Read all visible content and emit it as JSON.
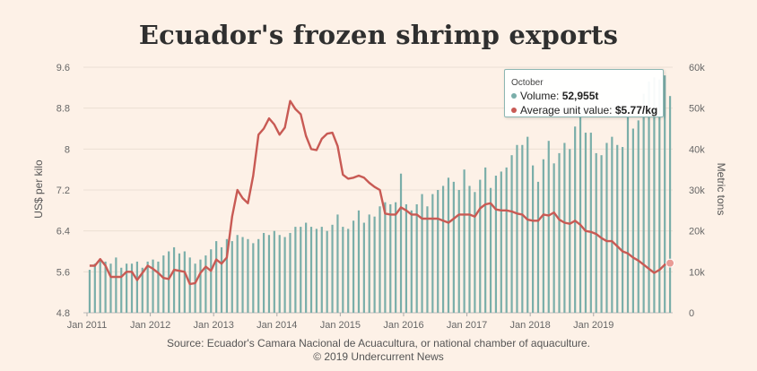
{
  "chart_data": {
    "type": "bar",
    "title": "Ecuador's frozen shrimp exports",
    "ylabel_left": "US$ per kilo",
    "ylabel_right": "Metric tons",
    "left_axis": {
      "ylim": [
        4.8,
        9.6
      ],
      "ticks": [
        "9.6",
        "8.8",
        "8",
        "7.2",
        "6.4",
        "5.6",
        "4.8"
      ]
    },
    "right_axis": {
      "ylim": [
        0,
        60000
      ],
      "ticks": [
        "60k",
        "50k",
        "40k",
        "30k",
        "20k",
        "10k",
        "0"
      ]
    },
    "x_ticks": [
      "Jan 2011",
      "Jan 2012",
      "Jan 2013",
      "Jan 2014",
      "Jan 2015",
      "Jan 2016",
      "Jan 2017",
      "Jan 2018",
      "Jan 2019"
    ],
    "start_month": "Jan 2011",
    "grid": true,
    "colors": {
      "volume": "#7aaea9",
      "unit_value": "#c85a54",
      "background": "#fdf1e7"
    },
    "series": [
      {
        "name": "Volume",
        "kind": "bar",
        "axis": "right",
        "values": [
          10500,
          12000,
          13000,
          12500,
          12000,
          13500,
          11000,
          12000,
          12000,
          12500,
          11000,
          12500,
          13000,
          12500,
          14000,
          15000,
          16000,
          14500,
          15000,
          13500,
          12000,
          13000,
          14000,
          15500,
          17500,
          16000,
          18000,
          17500,
          19000,
          18500,
          18000,
          17000,
          18000,
          19500,
          19000,
          20000,
          19000,
          18500,
          19500,
          21000,
          21000,
          22000,
          21000,
          20500,
          21000,
          20000,
          21500,
          24000,
          21000,
          20500,
          22500,
          25000,
          22000,
          24000,
          23500,
          26000,
          27000,
          26500,
          27000,
          34000,
          26500,
          25000,
          26500,
          29000,
          26000,
          29000,
          30000,
          31000,
          33000,
          32000,
          30000,
          35000,
          31000,
          29500,
          32500,
          35500,
          30500,
          33500,
          34500,
          35500,
          38500,
          41000,
          41000,
          43000,
          36000,
          32000,
          37500,
          42000,
          36500,
          39000,
          41500,
          40000,
          45500,
          50000,
          44000,
          44000,
          39000,
          38500,
          41500,
          43000,
          41000,
          40500,
          48000,
          45000,
          47000,
          53500,
          56500,
          57500,
          57000,
          58000,
          52955
        ]
      },
      {
        "name": "Average unit value",
        "kind": "line",
        "axis": "left",
        "values": [
          5.72,
          5.72,
          5.85,
          5.72,
          5.5,
          5.5,
          5.5,
          5.6,
          5.6,
          5.44,
          5.58,
          5.72,
          5.66,
          5.58,
          5.48,
          5.46,
          5.64,
          5.62,
          5.6,
          5.36,
          5.38,
          5.58,
          5.7,
          5.62,
          5.84,
          5.76,
          5.88,
          6.68,
          7.2,
          7.04,
          6.94,
          7.48,
          8.28,
          8.4,
          8.6,
          8.48,
          8.28,
          8.42,
          8.94,
          8.78,
          8.68,
          8.26,
          8.0,
          7.98,
          8.2,
          8.3,
          8.32,
          8.06,
          7.5,
          7.42,
          7.44,
          7.48,
          7.44,
          7.34,
          7.26,
          7.2,
          6.74,
          6.72,
          6.72,
          6.86,
          6.8,
          6.72,
          6.72,
          6.64,
          6.64,
          6.64,
          6.64,
          6.6,
          6.56,
          6.64,
          6.72,
          6.72,
          6.72,
          6.68,
          6.84,
          6.92,
          6.94,
          6.82,
          6.8,
          6.8,
          6.78,
          6.74,
          6.72,
          6.62,
          6.6,
          6.6,
          6.72,
          6.7,
          6.76,
          6.62,
          6.56,
          6.54,
          6.6,
          6.52,
          6.4,
          6.38,
          6.34,
          6.26,
          6.2,
          6.2,
          6.1,
          6.0,
          5.96,
          5.88,
          5.82,
          5.74,
          5.66,
          5.58,
          5.64,
          5.74,
          5.77
        ]
      }
    ],
    "tooltip": {
      "month": "October",
      "volume_label": "Volume:",
      "volume_value": "52,955t",
      "unit_label": "Average unit value:",
      "unit_value": "$5.77/kg"
    }
  },
  "source": "Source: Ecuador's Camara Nacional de Acuacultura, or national chamber of aquaculture.",
  "copyright": "© 2019 Undercurrent News"
}
